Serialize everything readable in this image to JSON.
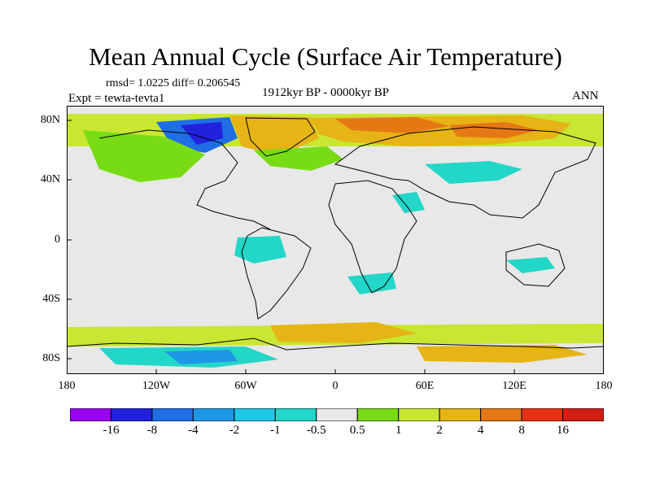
{
  "title": "Mean Annual Cycle (Surface Air Temperature)",
  "stats": "rmsd= 1.0225 diff= 0.206545",
  "experiment": "Expt = tewta-tevta1",
  "period": "1912kyr BP - 0000kyr BP",
  "season": "ANN",
  "y_ticks": [
    "80N",
    "40N",
    "0",
    "40S",
    "80S"
  ],
  "x_ticks": [
    "180",
    "120W",
    "60W",
    "0",
    "60E",
    "120E",
    "180"
  ],
  "colorbar": {
    "labels": [
      "-16",
      "-8",
      "-4",
      "-2",
      "-1",
      "-0.5",
      "0.5",
      "1",
      "2",
      "4",
      "8",
      "16"
    ],
    "colors": [
      "#9900ee",
      "#2222dd",
      "#1e6ee6",
      "#1e96e6",
      "#1ec8e6",
      "#22d6c8",
      "#e8e8e8",
      "#78dc14",
      "#c8e632",
      "#e6b414",
      "#e67814",
      "#e63214",
      "#d21e14"
    ]
  },
  "colors": {
    "neutral": "#e8e8e8",
    "coast": "#000000"
  }
}
